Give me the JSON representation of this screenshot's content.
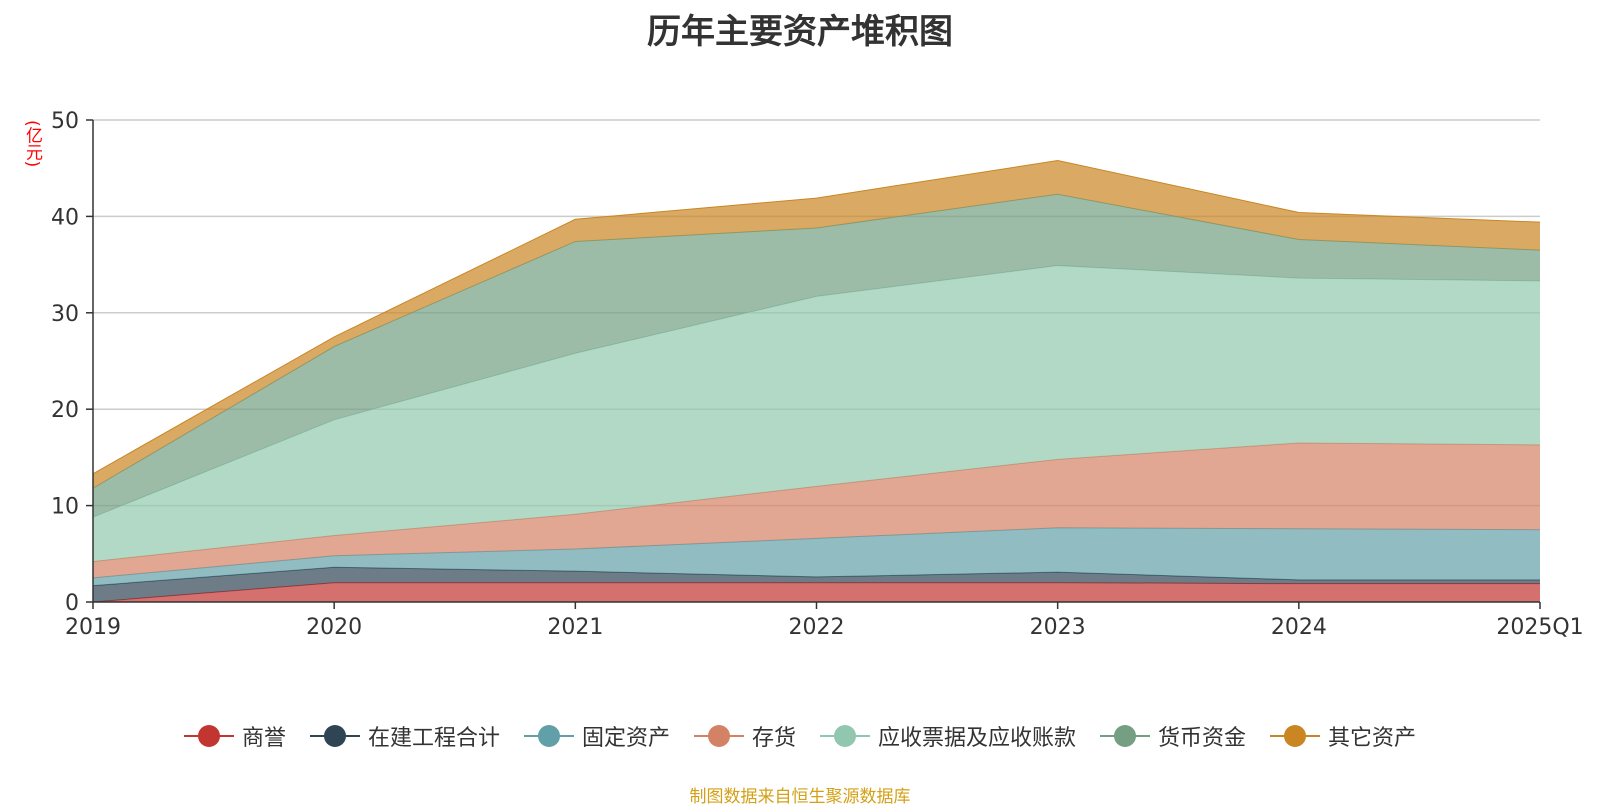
{
  "title": "历年主要资产堆积图",
  "unit": "(亿元)",
  "source": "制图数据来自恒生聚源数据库",
  "chart_data": {
    "type": "area",
    "stacked": true,
    "title": "历年主要资产堆积图",
    "ylabel": "(亿元)",
    "categories": [
      "2019",
      "2020",
      "2021",
      "2022",
      "2023",
      "2024",
      "2025Q1"
    ],
    "ylim": [
      0,
      50
    ],
    "yticks": [
      0,
      10,
      20,
      30,
      40,
      50
    ],
    "grid": true,
    "legend_position": "bottom",
    "series": [
      {
        "name": "商誉",
        "color": "#c23531",
        "values": [
          0.0,
          2.0,
          2.0,
          2.0,
          2.0,
          1.9,
          1.9
        ]
      },
      {
        "name": "在建工程合计",
        "color": "#2f4554",
        "values": [
          1.7,
          1.6,
          1.2,
          0.6,
          1.1,
          0.4,
          0.4
        ]
      },
      {
        "name": "固定资产",
        "color": "#61a0a8",
        "values": [
          0.8,
          1.2,
          2.3,
          4.0,
          4.6,
          5.3,
          5.2
        ]
      },
      {
        "name": "存货",
        "color": "#d48265",
        "values": [
          1.7,
          2.1,
          3.6,
          5.4,
          7.1,
          8.9,
          8.8
        ]
      },
      {
        "name": "应收票据及应收账款",
        "color": "#91c7ae",
        "values": [
          4.6,
          12.0,
          16.7,
          19.7,
          20.1,
          17.1,
          17.0
        ]
      },
      {
        "name": "货币资金",
        "color": "#749f83",
        "values": [
          3.0,
          7.6,
          11.6,
          7.1,
          7.4,
          4.0,
          3.2
        ]
      },
      {
        "name": "其它资产",
        "color": "#ca8622",
        "values": [
          1.5,
          1.0,
          2.3,
          3.1,
          3.5,
          2.8,
          2.9
        ]
      }
    ]
  }
}
